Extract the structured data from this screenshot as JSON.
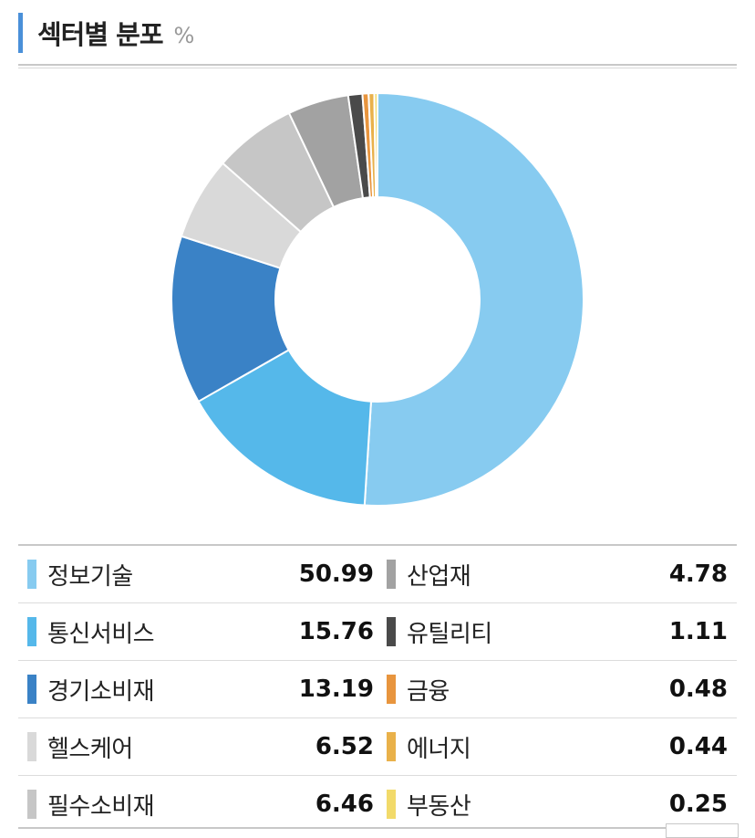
{
  "header": {
    "title": "섹터별 분포",
    "unit": "%"
  },
  "chart_data": {
    "type": "pie",
    "title": "섹터별 분포",
    "unit": "%",
    "donut": true,
    "series": [
      {
        "name": "정보기술",
        "value": 50.99,
        "value_label": "50.99",
        "color": "#87cbf0"
      },
      {
        "name": "통신서비스",
        "value": 15.76,
        "value_label": "15.76",
        "color": "#55b8ea"
      },
      {
        "name": "경기소비재",
        "value": 13.19,
        "value_label": "13.19",
        "color": "#3a82c6"
      },
      {
        "name": "헬스케어",
        "value": 6.52,
        "value_label": "6.52",
        "color": "#d9d9d9"
      },
      {
        "name": "필수소비재",
        "value": 6.46,
        "value_label": "6.46",
        "color": "#c6c6c6"
      },
      {
        "name": "산업재",
        "value": 4.78,
        "value_label": "4.78",
        "color": "#a2a2a2"
      },
      {
        "name": "유틸리티",
        "value": 1.11,
        "value_label": "1.11",
        "color": "#4a4a4a"
      },
      {
        "name": "금융",
        "value": 0.48,
        "value_label": "0.48",
        "color": "#e8953e"
      },
      {
        "name": "에너지",
        "value": 0.44,
        "value_label": "0.44",
        "color": "#e9b14a"
      },
      {
        "name": "부동산",
        "value": 0.25,
        "value_label": "0.25",
        "color": "#f2da6a"
      }
    ]
  }
}
